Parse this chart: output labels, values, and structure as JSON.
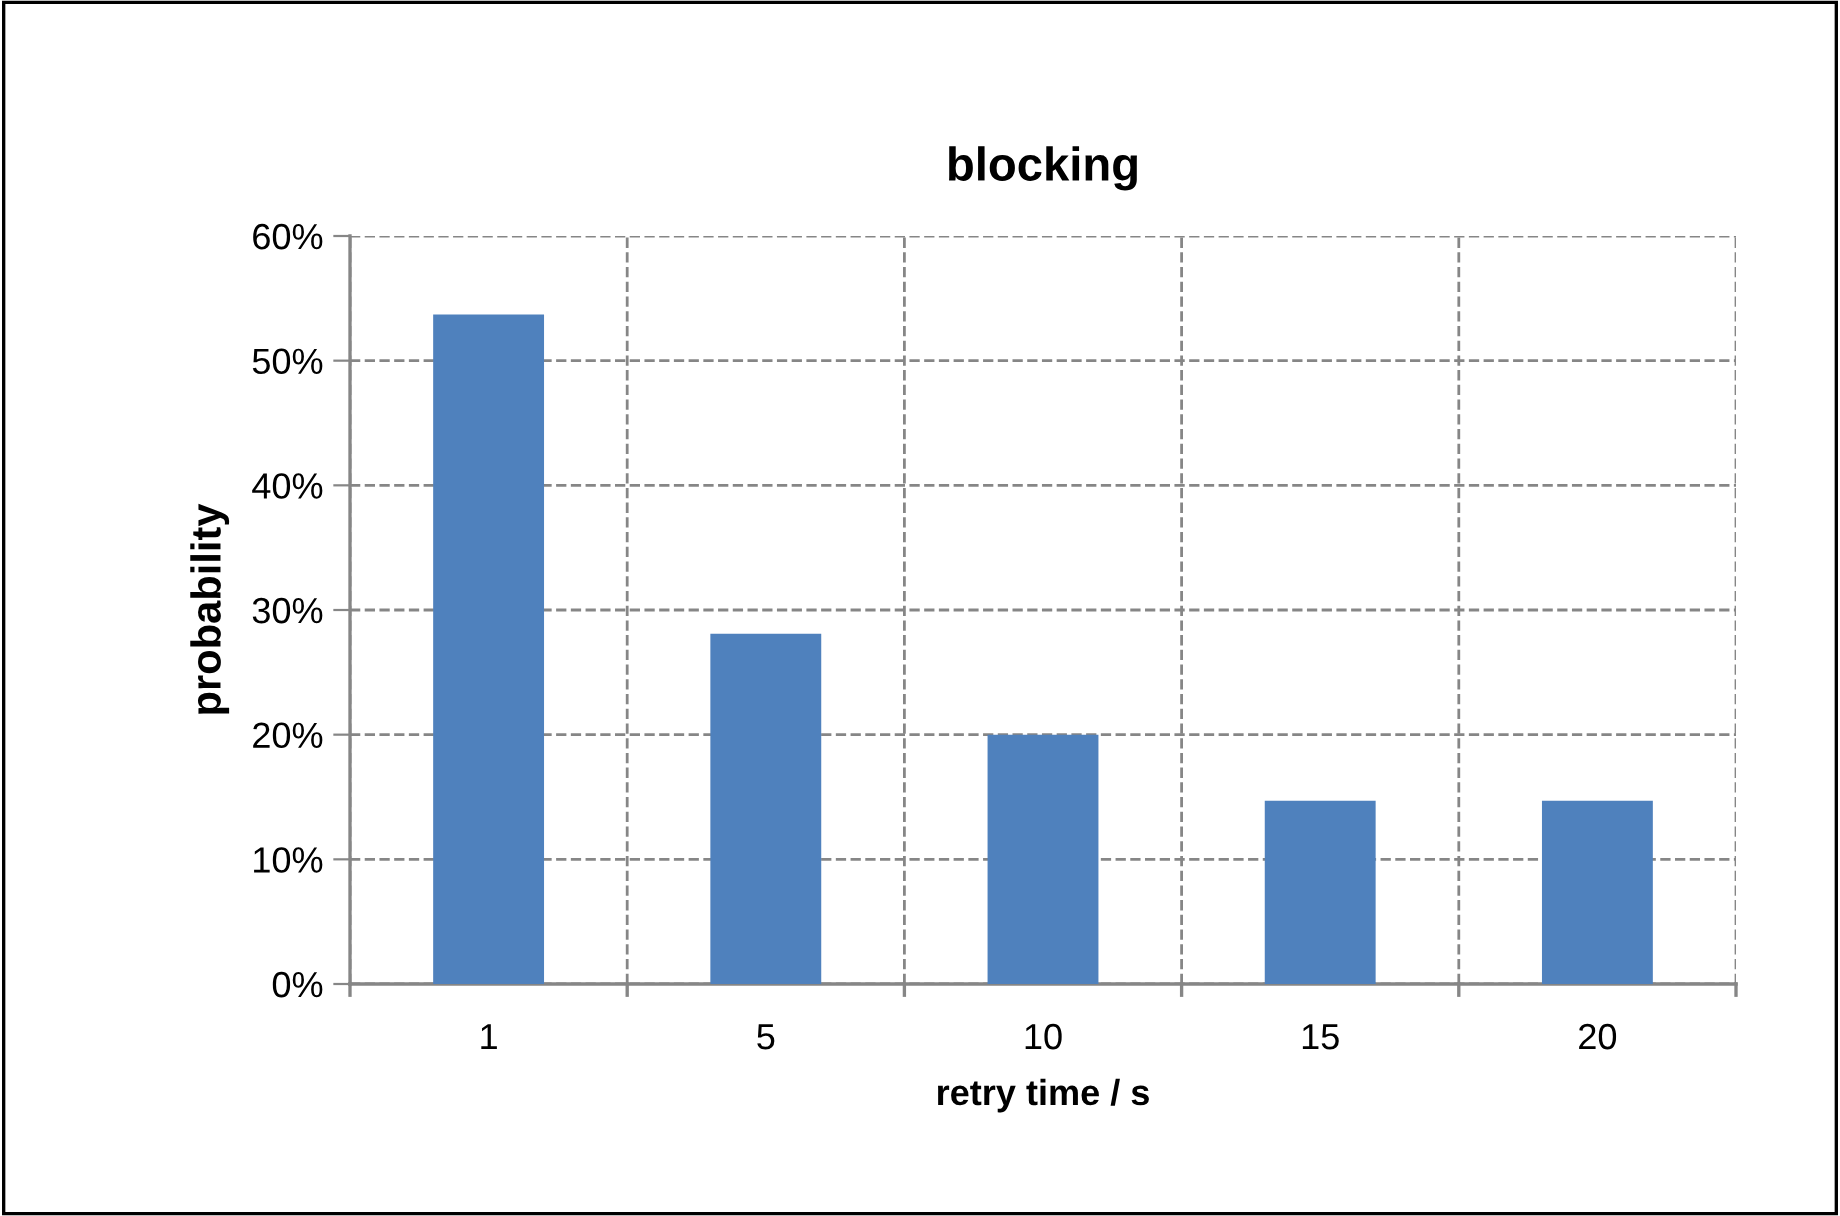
{
  "chart_data": {
    "type": "bar",
    "title": "blocking",
    "xlabel": "retry time / s",
    "ylabel": "probability",
    "categories": [
      "1",
      "5",
      "10",
      "15",
      "20"
    ],
    "values": [
      53.7,
      28.1,
      20,
      14.7,
      14.7
    ],
    "color": "#4f81bd",
    "ylim": [
      0,
      60
    ],
    "yticks": [
      {
        "value": 0,
        "label": "0%"
      },
      {
        "value": 10,
        "label": "10%"
      },
      {
        "value": 20,
        "label": "20%"
      },
      {
        "value": 30,
        "label": "30%"
      },
      {
        "value": 40,
        "label": "40%"
      },
      {
        "value": 50,
        "label": "50%"
      },
      {
        "value": 60,
        "label": "60%"
      }
    ],
    "grid": true,
    "legend": false
  }
}
